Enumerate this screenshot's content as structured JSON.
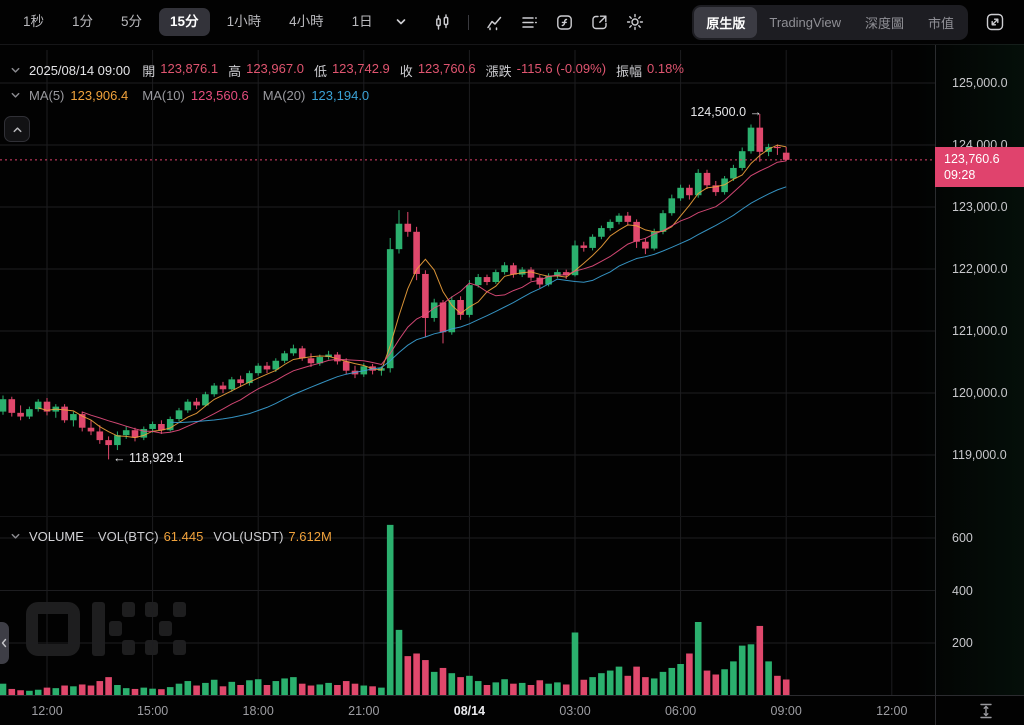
{
  "toolbar": {
    "timeframes": [
      {
        "label": "1秒",
        "active": false
      },
      {
        "label": "1分",
        "active": false
      },
      {
        "label": "5分",
        "active": false
      },
      {
        "label": "15分",
        "active": true
      },
      {
        "label": "1小時",
        "active": false
      },
      {
        "label": "4小時",
        "active": false
      },
      {
        "label": "1日",
        "active": false
      }
    ],
    "icons": [
      "timeframe-dropdown",
      "candlestick-style",
      "indicators",
      "indicator-list",
      "formula",
      "save-layout",
      "settings",
      "expand"
    ],
    "right_tabs": [
      {
        "label": "原生版",
        "active": true
      },
      {
        "label": "TradingView",
        "active": false
      },
      {
        "label": "深度圖",
        "active": false
      },
      {
        "label": "市值",
        "active": false
      }
    ]
  },
  "legend": {
    "datetime": "2025/08/14 09:00",
    "fields": [
      {
        "label": "開",
        "value": "123,876.1"
      },
      {
        "label": "高",
        "value": "123,967.0"
      },
      {
        "label": "低",
        "value": "123,742.9"
      },
      {
        "label": "收",
        "value": "123,760.6"
      },
      {
        "label": "漲跌",
        "value": "-115.6 (-0.09%)"
      },
      {
        "label": "振幅",
        "value": "0.18%"
      }
    ]
  },
  "ma": {
    "items": [
      {
        "label": "MA(5)",
        "period": 5,
        "value": "123,906.4",
        "color": "#f0a23c"
      },
      {
        "label": "MA(10)",
        "period": 10,
        "value": "123,560.6",
        "color": "#e64e7e"
      },
      {
        "label": "MA(20)",
        "period": 20,
        "value": "123,194.0",
        "color": "#3ba2d6"
      }
    ]
  },
  "price_axis": {
    "ticks": [
      "125,000.0",
      "124,000.0",
      "123,000.0",
      "122,000.0",
      "121,000.0",
      "120,000.0",
      "119,000.0"
    ],
    "badge": {
      "price": "123,760.6",
      "time": "09:28"
    }
  },
  "annotations": {
    "high": "124,500.0 →",
    "low": "← 118,929.1"
  },
  "volume": {
    "title": "VOLUME",
    "fields": [
      {
        "label": "VOL(BTC)",
        "value": "61.445"
      },
      {
        "label": "VOL(USDT)",
        "value": "7.612M"
      }
    ],
    "ticks": [
      "600",
      "400",
      "200"
    ]
  },
  "time_axis": [
    {
      "label": "12:00",
      "emphasis": false
    },
    {
      "label": "15:00",
      "emphasis": false
    },
    {
      "label": "18:00",
      "emphasis": false
    },
    {
      "label": "21:00",
      "emphasis": false
    },
    {
      "label": "08/14",
      "emphasis": true
    },
    {
      "label": "03:00",
      "emphasis": false
    },
    {
      "label": "06:00",
      "emphasis": false
    },
    {
      "label": "09:00",
      "emphasis": false
    },
    {
      "label": "12:00",
      "emphasis": false
    }
  ],
  "colors": {
    "up": "#2bb06e",
    "down": "#e0486c",
    "badge": "#e0436d",
    "dotted_line": "#e0436d",
    "value_pink": "#e05570",
    "value_orange": "#f0a23c",
    "grid": "#1d1d20",
    "axis_line": "#2b2b2f"
  },
  "chart_data": {
    "type": "candlestick+volume",
    "timeframe": "15分",
    "price_gridlines": [
      125000,
      124000,
      123000,
      122000,
      121000,
      120000,
      119000
    ],
    "volume_gridlines": [
      600,
      400,
      200
    ],
    "last_price": 123760.6,
    "last_time": "09:28",
    "high_annotation_price": 124500.0,
    "low_annotation_price": 118929.1,
    "high_candle_index": 86,
    "low_candle_index": 12,
    "candles_ohlc": [
      [
        119700,
        119960,
        119650,
        119900
      ],
      [
        119900,
        119940,
        119620,
        119680
      ],
      [
        119680,
        119800,
        119560,
        119620
      ],
      [
        119620,
        119780,
        119580,
        119740
      ],
      [
        119740,
        119900,
        119700,
        119860
      ],
      [
        119860,
        119920,
        119640,
        119700
      ],
      [
        119700,
        119820,
        119600,
        119780
      ],
      [
        119780,
        119820,
        119520,
        119560
      ],
      [
        119560,
        119700,
        119460,
        119660
      ],
      [
        119660,
        119700,
        119380,
        119440
      ],
      [
        119440,
        119560,
        119320,
        119380
      ],
      [
        119380,
        119480,
        119180,
        119240
      ],
      [
        119240,
        119300,
        118929.1,
        119160
      ],
      [
        119160,
        119380,
        119080,
        119320
      ],
      [
        119320,
        119460,
        119260,
        119400
      ],
      [
        119400,
        119440,
        119220,
        119280
      ],
      [
        119280,
        119460,
        119240,
        119420
      ],
      [
        119420,
        119540,
        119360,
        119500
      ],
      [
        119500,
        119560,
        119340,
        119400
      ],
      [
        119400,
        119620,
        119380,
        119580
      ],
      [
        119580,
        119760,
        119540,
        119720
      ],
      [
        119720,
        119900,
        119680,
        119860
      ],
      [
        119860,
        119920,
        119740,
        119800
      ],
      [
        119800,
        120020,
        119780,
        119980
      ],
      [
        119980,
        120160,
        119940,
        120120
      ],
      [
        120120,
        120180,
        120000,
        120060
      ],
      [
        120060,
        120260,
        120020,
        120220
      ],
      [
        120220,
        120280,
        120100,
        120160
      ],
      [
        120160,
        120360,
        120120,
        120320
      ],
      [
        120320,
        120480,
        120280,
        120440
      ],
      [
        120440,
        120500,
        120320,
        120380
      ],
      [
        120380,
        120560,
        120340,
        120520
      ],
      [
        120520,
        120680,
        120480,
        120640
      ],
      [
        120640,
        120780,
        120600,
        120720
      ],
      [
        120720,
        120760,
        120520,
        120560
      ],
      [
        120560,
        120640,
        120420,
        120480
      ],
      [
        120480,
        120620,
        120440,
        120580
      ],
      [
        120580,
        120680,
        120540,
        120620
      ],
      [
        120620,
        120660,
        120460,
        120510
      ],
      [
        120510,
        120560,
        120300,
        120360
      ],
      [
        120360,
        120440,
        120240,
        120300
      ],
      [
        120300,
        120480,
        120260,
        120430
      ],
      [
        120430,
        120470,
        120300,
        120360
      ],
      [
        120360,
        120430,
        120280,
        120400
      ],
      [
        120400,
        122500,
        120330,
        122320
      ],
      [
        122320,
        122950,
        122250,
        122730
      ],
      [
        122730,
        122920,
        122520,
        122600
      ],
      [
        122600,
        122680,
        121820,
        121920
      ],
      [
        121920,
        121980,
        120900,
        121210
      ],
      [
        121210,
        121520,
        121150,
        121460
      ],
      [
        121460,
        121500,
        120800,
        120980
      ],
      [
        120980,
        121560,
        120940,
        121500
      ],
      [
        121500,
        121560,
        121180,
        121260
      ],
      [
        121260,
        121820,
        121220,
        121740
      ],
      [
        121740,
        121920,
        121700,
        121870
      ],
      [
        121870,
        121910,
        121740,
        121790
      ],
      [
        121790,
        121990,
        121760,
        121950
      ],
      [
        121950,
        122110,
        121910,
        122060
      ],
      [
        122060,
        122100,
        121860,
        121910
      ],
      [
        121910,
        122030,
        121870,
        121990
      ],
      [
        121990,
        122030,
        121810,
        121860
      ],
      [
        121860,
        121900,
        121690,
        121750
      ],
      [
        121750,
        121930,
        121720,
        121890
      ],
      [
        121890,
        121990,
        121850,
        121950
      ],
      [
        121950,
        121990,
        121840,
        121900
      ],
      [
        121900,
        122460,
        121880,
        122380
      ],
      [
        122380,
        122440,
        122280,
        122340
      ],
      [
        122340,
        122560,
        122300,
        122520
      ],
      [
        122520,
        122700,
        122480,
        122660
      ],
      [
        122660,
        122800,
        122620,
        122760
      ],
      [
        122760,
        122900,
        122720,
        122860
      ],
      [
        122860,
        122920,
        122700,
        122760
      ],
      [
        122760,
        122800,
        122340,
        122440
      ],
      [
        122440,
        122500,
        122240,
        122330
      ],
      [
        122330,
        122650,
        122300,
        122600
      ],
      [
        122600,
        122950,
        122560,
        122900
      ],
      [
        122900,
        123200,
        122860,
        123140
      ],
      [
        123140,
        123360,
        123100,
        123310
      ],
      [
        123310,
        123360,
        123120,
        123190
      ],
      [
        123190,
        123610,
        123150,
        123550
      ],
      [
        123550,
        123600,
        123290,
        123350
      ],
      [
        123350,
        123420,
        123180,
        123240
      ],
      [
        123240,
        123500,
        123200,
        123460
      ],
      [
        123460,
        123680,
        123420,
        123630
      ],
      [
        123630,
        123960,
        123590,
        123900
      ],
      [
        123900,
        124330,
        123860,
        124280
      ],
      [
        124280,
        124500,
        123730,
        123890
      ],
      [
        123890,
        124020,
        123820,
        123970
      ],
      [
        123970,
        124010,
        123840,
        123950
      ],
      [
        123876.1,
        123967,
        123742.9,
        123760.6
      ]
    ],
    "volumes": [
      45,
      25,
      20,
      18,
      22,
      30,
      28,
      38,
      35,
      42,
      38,
      55,
      70,
      40,
      28,
      25,
      30,
      26,
      24,
      32,
      45,
      55,
      38,
      48,
      60,
      35,
      52,
      40,
      58,
      62,
      40,
      55,
      65,
      70,
      45,
      38,
      42,
      48,
      40,
      55,
      45,
      38,
      35,
      30,
      650,
      250,
      150,
      160,
      135,
      90,
      105,
      85,
      70,
      75,
      55,
      40,
      50,
      62,
      45,
      48,
      40,
      58,
      45,
      50,
      42,
      240,
      60,
      70,
      85,
      95,
      110,
      75,
      110,
      70,
      65,
      90,
      105,
      120,
      160,
      280,
      95,
      80,
      100,
      130,
      190,
      195,
      265,
      130,
      75,
      61
    ]
  }
}
